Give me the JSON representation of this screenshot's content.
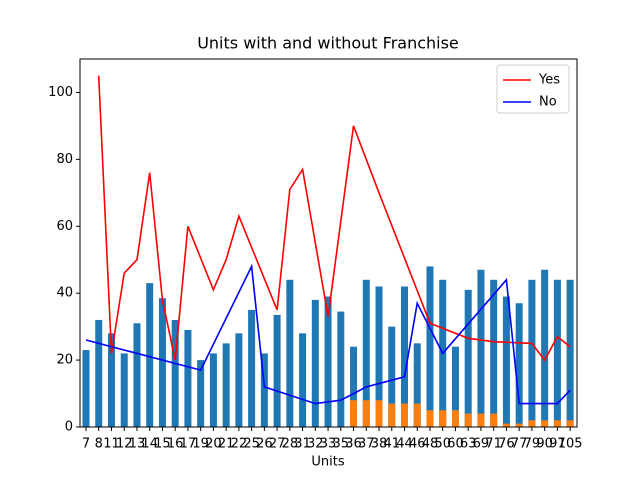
{
  "chart_data": {
    "type": "bar",
    "title": "Units with and without Franchise",
    "x_label": "Units",
    "categories": [
      7,
      8,
      11,
      12,
      13,
      14,
      15,
      16,
      17,
      19,
      20,
      21,
      22,
      25,
      26,
      27,
      28,
      31,
      32,
      33,
      35,
      36,
      37,
      38,
      41,
      44,
      46,
      48,
      50,
      60,
      63,
      69,
      71,
      76,
      77,
      79,
      90,
      97,
      105
    ],
    "series": [
      {
        "color": "#1f77b4",
        "values": [
          23,
          32,
          28,
          22,
          31,
          43,
          38.5,
          32,
          29,
          20,
          22,
          25,
          28,
          35,
          22,
          33.5,
          44,
          28,
          38,
          39,
          34.5,
          24,
          44,
          42,
          30,
          42,
          25,
          48,
          44,
          24,
          41,
          47,
          44,
          39,
          37,
          44,
          47,
          44,
          44
        ]
      },
      {
        "color": "#ff7f0e",
        "values": [
          null,
          null,
          null,
          null,
          null,
          null,
          null,
          null,
          null,
          null,
          null,
          null,
          null,
          null,
          null,
          null,
          null,
          null,
          null,
          null,
          null,
          8,
          8,
          8,
          7,
          7,
          7,
          5,
          5,
          5,
          4,
          4,
          4,
          1,
          1,
          2,
          2,
          2,
          2
        ]
      }
    ],
    "lines": [
      {
        "name": "Yes",
        "color": "red",
        "x": [
          8,
          11,
          12,
          13,
          14,
          15,
          16,
          17,
          20,
          21,
          22,
          27,
          28,
          31,
          33,
          36,
          38,
          48,
          63,
          71,
          79,
          90,
          97,
          105
        ],
        "values": [
          105,
          22,
          46,
          50,
          76,
          38,
          20,
          60,
          41,
          50,
          63,
          35,
          71,
          77,
          33,
          90,
          70,
          31,
          26.5,
          25.5,
          25,
          20,
          27,
          24
        ]
      },
      {
        "name": "No",
        "color": "blue",
        "x": [
          7,
          19,
          25,
          26,
          32,
          35,
          37,
          44,
          46,
          50,
          76,
          77,
          97,
          105
        ],
        "values": [
          26,
          17,
          48,
          12,
          7,
          8,
          12,
          15,
          37,
          22,
          44,
          7,
          7,
          11
        ]
      }
    ],
    "ylim": [
      0,
      110
    ],
    "yticks": [
      0,
      20,
      40,
      60,
      80,
      100
    ],
    "legend": "upper right"
  }
}
